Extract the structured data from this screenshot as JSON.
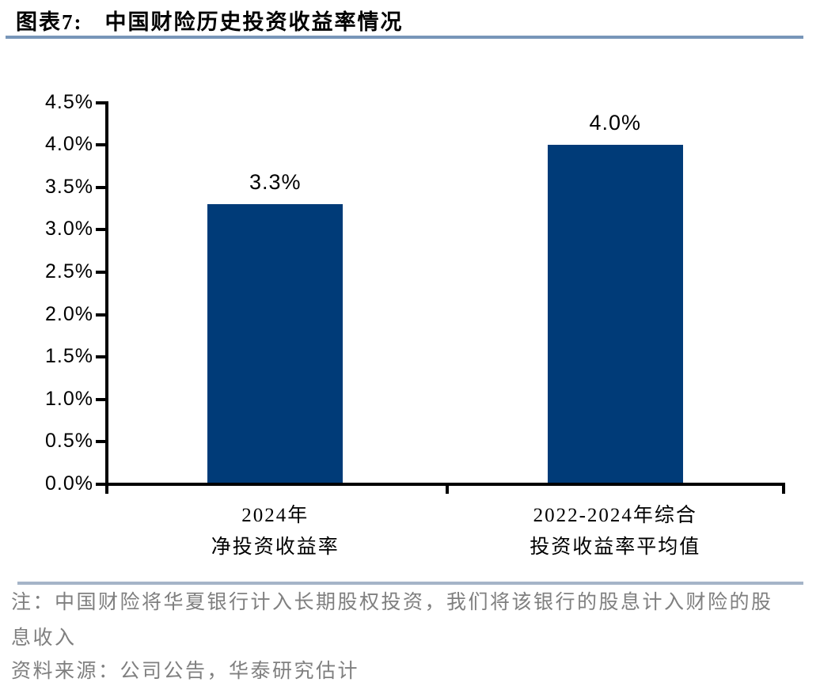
{
  "header": {
    "figure_label": "图表7:",
    "title": "中国财险历史投资收益率情况"
  },
  "chart_data": {
    "type": "bar",
    "title": "中国财险历史投资收益率情况",
    "categories": [
      [
        "2024年",
        "净投资收益率"
      ],
      [
        "2022-2024年综合",
        "投资收益率平均值"
      ]
    ],
    "values": [
      3.3,
      4.0
    ],
    "data_labels": [
      "3.3%",
      "4.0%"
    ],
    "ylim": [
      0,
      4.5
    ],
    "y_tick_step": 0.5,
    "y_tick_labels": [
      "0.0%",
      "0.5%",
      "1.0%",
      "1.5%",
      "2.0%",
      "2.5%",
      "3.0%",
      "3.5%",
      "4.0%",
      "4.5%"
    ],
    "xlabel": "",
    "ylabel": "",
    "bar_color": "#003B78",
    "grid": false,
    "legend": false
  },
  "footer": {
    "note_lines": [
      "注：中国财险将华夏银行计入长期股权投资，我们将该银行的股息计入财险的股",
      "息收入"
    ],
    "source": "资料来源：公司公告，华泰研究估计"
  },
  "colors": {
    "bar": "#003B78",
    "title_rule": "#7896B9",
    "footer_rule": "#A5B4C8",
    "note_text": "#7F7F7F",
    "axis": "#000000"
  }
}
